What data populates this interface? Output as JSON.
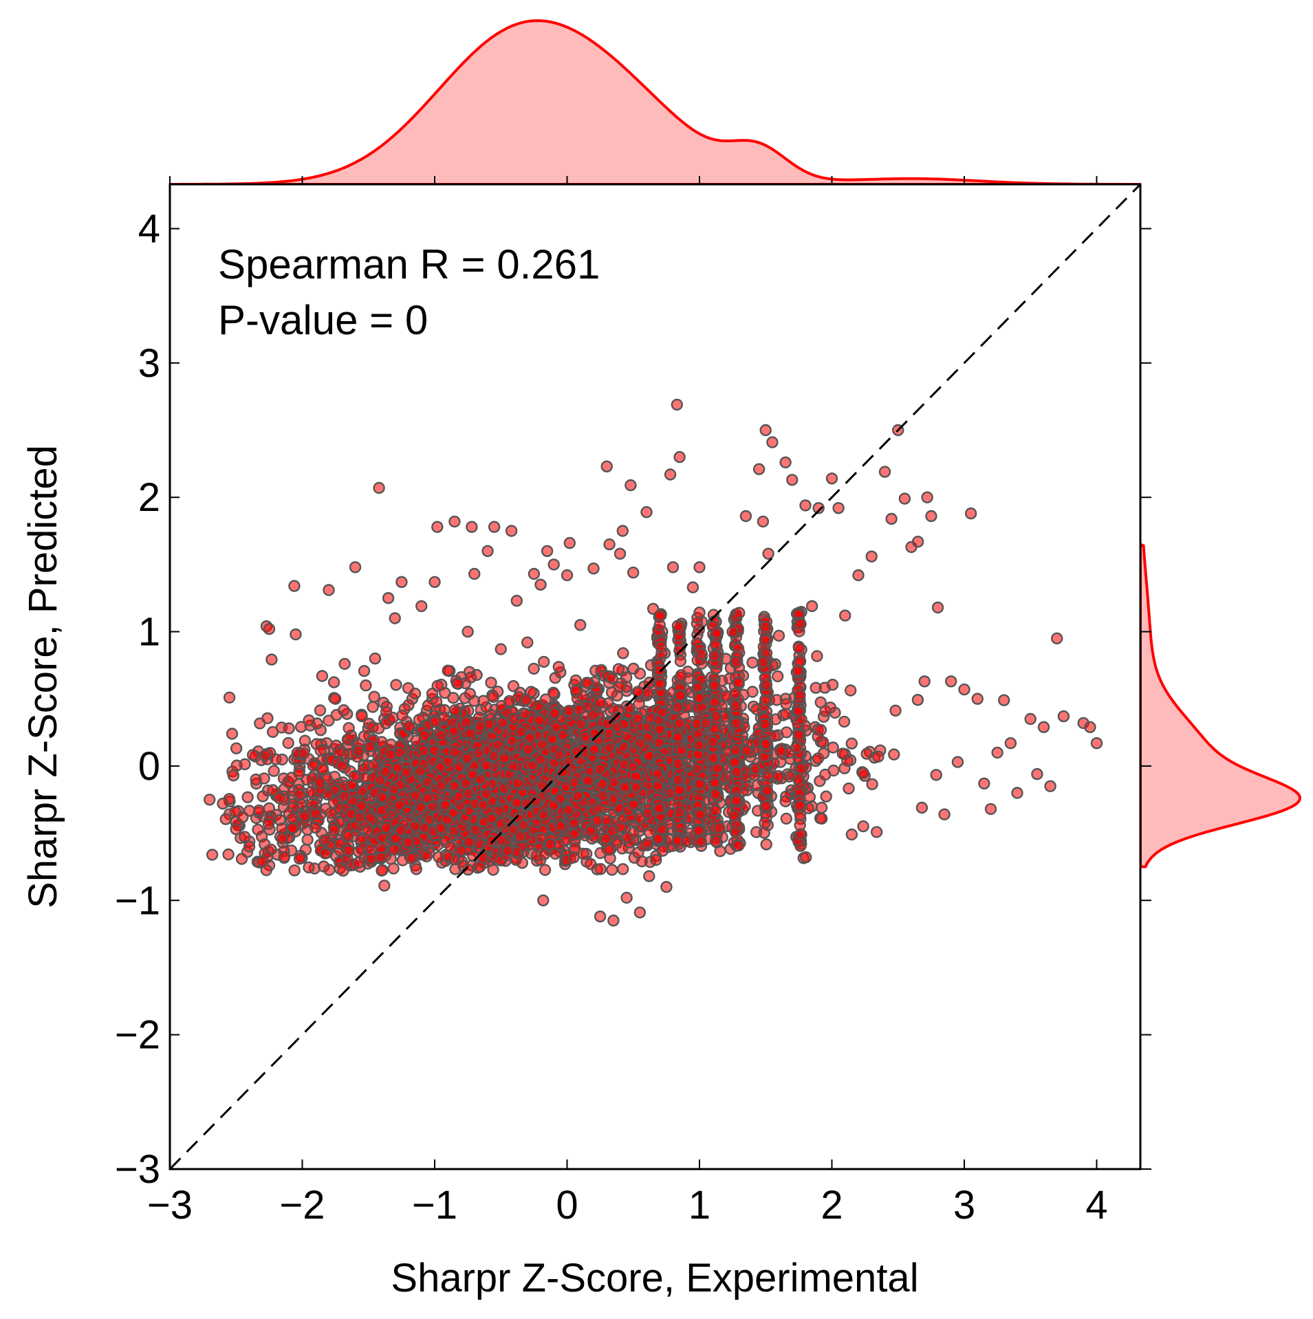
{
  "chart_data": {
    "type": "scatter",
    "xlabel": "Sharpr Z-Score, Experimental",
    "ylabel": "Sharpr Z-Score,  Predicted",
    "xlim": [
      -3,
      4.33
    ],
    "ylim": [
      -3,
      4.33
    ],
    "x_ticks": [
      -3,
      -2,
      -1,
      0,
      1,
      2,
      3,
      4
    ],
    "y_ticks": [
      -3,
      -2,
      -1,
      0,
      1,
      2,
      3,
      4
    ],
    "x_tick_labels": [
      "−3",
      "−2",
      "−1",
      "0",
      "1",
      "2",
      "3",
      "4"
    ],
    "y_tick_labels": [
      "−3",
      "−2",
      "−1",
      "0",
      "1",
      "2",
      "3",
      "4"
    ],
    "annotations": [
      "Spearman R = 0.261",
      "P-value = 0"
    ],
    "reference_line": "y = x (dashed)",
    "grid": false,
    "point_color": "#ff0000",
    "point_edge_color": "#555555",
    "kde_color": "#ff0000",
    "kde_fill": "#ffbbbb",
    "series": [
      {
        "values_xy": [
          [
            -2.7,
            -0.25
          ],
          [
            -2.68,
            -0.66
          ],
          [
            -2.6,
            -0.28
          ],
          [
            -2.55,
            0.51
          ],
          [
            -2.53,
            0.24
          ],
          [
            -2.52,
            -0.07
          ],
          [
            -2.5,
            -0.47
          ],
          [
            -2.45,
            -0.38
          ],
          [
            -2.4,
            -0.6
          ],
          [
            -2.35,
            -0.1
          ],
          [
            -2.3,
            -0.71
          ],
          [
            -2.28,
            0.08
          ],
          [
            -2.27,
            1.04
          ],
          [
            -2.25,
            1.02
          ],
          [
            -2.2,
            0.05
          ],
          [
            -2.15,
            -0.54
          ],
          [
            -2.1,
            0.28
          ],
          [
            -2.06,
            1.34
          ],
          [
            -2.05,
            0.98
          ],
          [
            -2.02,
            -0.69
          ],
          [
            -1.98,
            -0.37
          ],
          [
            -1.95,
            0.34
          ],
          [
            -1.85,
            0.67
          ],
          [
            -1.8,
            1.31
          ],
          [
            -1.75,
            0.5
          ],
          [
            -1.7,
            0.0
          ],
          [
            -1.68,
            0.76
          ],
          [
            -1.65,
            -0.63
          ],
          [
            -1.6,
            1.48
          ],
          [
            -1.55,
            0.37
          ],
          [
            -1.52,
            0.6
          ],
          [
            -1.45,
            0.8
          ],
          [
            -1.42,
            2.07
          ],
          [
            -1.4,
            -0.23
          ],
          [
            -1.38,
            -0.89
          ],
          [
            -1.35,
            1.25
          ],
          [
            -1.3,
            1.1
          ],
          [
            -1.25,
            1.37
          ],
          [
            -1.2,
            0.58
          ],
          [
            -1.15,
            -0.45
          ],
          [
            -1.1,
            1.19
          ],
          [
            -1.05,
            0.45
          ],
          [
            -1.0,
            1.37
          ],
          [
            -0.98,
            1.78
          ],
          [
            -0.95,
            0.23
          ],
          [
            -0.9,
            0.71
          ],
          [
            -0.85,
            1.82
          ],
          [
            -0.8,
            -0.63
          ],
          [
            -0.75,
            1.0
          ],
          [
            -0.72,
            1.78
          ],
          [
            -0.7,
            1.43
          ],
          [
            -0.6,
            1.6
          ],
          [
            -0.55,
            1.78
          ],
          [
            -0.5,
            0.87
          ],
          [
            -0.45,
            -0.63
          ],
          [
            -0.42,
            1.75
          ],
          [
            -0.38,
            1.23
          ],
          [
            -0.3,
            0.92
          ],
          [
            -0.25,
            1.43
          ],
          [
            -0.2,
            1.35
          ],
          [
            -0.18,
            -1.0
          ],
          [
            -0.15,
            1.6
          ],
          [
            -0.1,
            1.5
          ],
          [
            -0.05,
            -0.45
          ],
          [
            0.0,
            1.42
          ],
          [
            0.02,
            1.66
          ],
          [
            0.05,
            -0.68
          ],
          [
            0.1,
            1.05
          ],
          [
            0.15,
            0.62
          ],
          [
            0.2,
            1.47
          ],
          [
            0.25,
            -1.12
          ],
          [
            0.3,
            2.23
          ],
          [
            0.32,
            1.65
          ],
          [
            0.35,
            -1.15
          ],
          [
            0.4,
            1.58
          ],
          [
            0.42,
            1.75
          ],
          [
            0.45,
            -0.98
          ],
          [
            0.48,
            2.09
          ],
          [
            0.5,
            1.44
          ],
          [
            0.55,
            -1.09
          ],
          [
            0.6,
            1.89
          ],
          [
            0.62,
            -0.82
          ],
          [
            0.65,
            1.17
          ],
          [
            0.7,
            1.05
          ],
          [
            0.72,
            0.4
          ],
          [
            0.75,
            -0.9
          ],
          [
            0.78,
            2.17
          ],
          [
            0.8,
            1.48
          ],
          [
            0.83,
            2.69
          ],
          [
            0.85,
            2.3
          ],
          [
            0.9,
            -0.56
          ],
          [
            0.95,
            1.33
          ],
          [
            1.0,
            1.48
          ],
          [
            1.05,
            0.32
          ],
          [
            1.1,
            0.18
          ],
          [
            1.15,
            -0.46
          ],
          [
            1.2,
            0.52
          ],
          [
            1.25,
            1.0
          ],
          [
            1.3,
            1.14
          ],
          [
            1.35,
            1.86
          ],
          [
            1.4,
            0.77
          ],
          [
            1.45,
            2.21
          ],
          [
            1.48,
            1.82
          ],
          [
            1.5,
            2.5
          ],
          [
            1.52,
            1.58
          ],
          [
            1.55,
            2.41
          ],
          [
            1.6,
            0.97
          ],
          [
            1.65,
            2.26
          ],
          [
            1.7,
            2.13
          ],
          [
            1.75,
            0.88
          ],
          [
            1.8,
            1.94
          ],
          [
            1.85,
            1.19
          ],
          [
            1.9,
            1.92
          ],
          [
            1.95,
            0.41
          ],
          [
            2.0,
            2.14
          ],
          [
            2.05,
            1.92
          ],
          [
            2.1,
            1.12
          ],
          [
            2.15,
            -0.51
          ],
          [
            2.2,
            1.42
          ],
          [
            2.3,
            1.56
          ],
          [
            2.35,
            0.07
          ],
          [
            2.4,
            2.19
          ],
          [
            2.45,
            1.84
          ],
          [
            2.5,
            2.5
          ],
          [
            2.55,
            1.99
          ],
          [
            2.6,
            1.63
          ],
          [
            2.65,
            1.67
          ],
          [
            2.7,
            0.63
          ],
          [
            2.72,
            2.0
          ],
          [
            2.75,
            1.86
          ],
          [
            2.8,
            1.18
          ],
          [
            2.85,
            -0.36
          ],
          [
            2.9,
            0.63
          ],
          [
            2.95,
            0.03
          ],
          [
            3.0,
            0.57
          ],
          [
            3.05,
            1.88
          ],
          [
            3.1,
            0.5
          ],
          [
            3.15,
            -0.13
          ],
          [
            3.2,
            -0.32
          ],
          [
            3.25,
            0.1
          ],
          [
            3.3,
            0.49
          ],
          [
            3.35,
            0.17
          ],
          [
            3.4,
            -0.2
          ],
          [
            3.5,
            0.35
          ],
          [
            3.55,
            -0.06
          ],
          [
            3.6,
            0.29
          ],
          [
            3.65,
            -0.15
          ],
          [
            3.7,
            0.95
          ],
          [
            3.75,
            0.37
          ],
          [
            3.9,
            0.32
          ],
          [
            3.95,
            0.29
          ],
          [
            4.0,
            0.17
          ]
        ]
      }
    ],
    "kde_x_peak": -0.4,
    "kde_y_peak": -0.25
  }
}
